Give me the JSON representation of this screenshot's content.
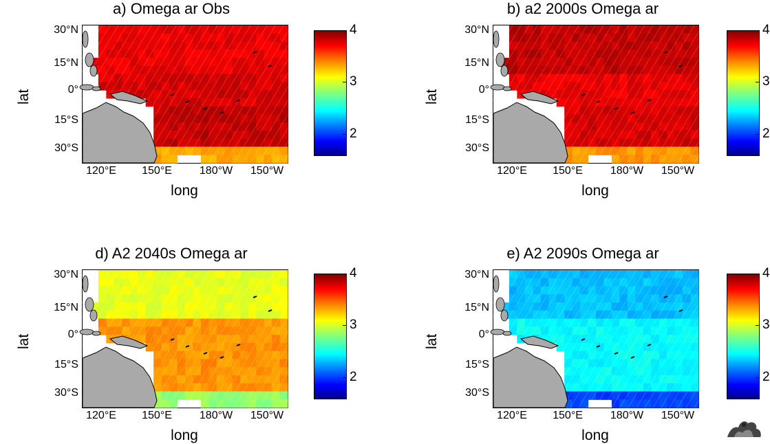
{
  "chart_data": [
    {
      "type": "heatmap",
      "title": "a) Omega ar Obs",
      "xlabel": "long",
      "ylabel": "lat",
      "x_ticks": [
        "120°E",
        "150°E",
        "180°W",
        "150°W"
      ],
      "y_ticks": [
        "30°N",
        "15°N",
        "0°",
        "15°S",
        "30°S"
      ],
      "colorbar": {
        "range": [
          1.6,
          4.0
        ],
        "ticks": [
          "4",
          "3",
          "2"
        ]
      },
      "typical_values": {
        "north": 3.75,
        "equator": 3.8,
        "south_central": 3.85,
        "far_south": 3.3
      }
    },
    {
      "type": "heatmap",
      "title": "b) a2 2000s Omega ar",
      "xlabel": "long",
      "ylabel": "lat",
      "x_ticks": [
        "120°E",
        "150°E",
        "180°W",
        "150°W"
      ],
      "y_ticks": [
        "30°N",
        "15°N",
        "0°",
        "15°S",
        "30°S"
      ],
      "colorbar": {
        "range": [
          1.6,
          4.0
        ],
        "ticks": [
          "4",
          "3",
          "2"
        ]
      },
      "typical_values": {
        "north": 3.85,
        "equator": 3.75,
        "south_central": 3.8,
        "far_south": 3.35
      }
    },
    {
      "type": "heatmap",
      "title": "d) A2 2040s Omega ar",
      "xlabel": "long",
      "ylabel": "lat",
      "x_ticks": [
        "120°E",
        "150°E",
        "180°W",
        "150°W"
      ],
      "y_ticks": [
        "30°N",
        "15°N",
        "0°",
        "15°S",
        "30°S"
      ],
      "colorbar": {
        "range": [
          1.6,
          4.0
        ],
        "ticks": [
          "4",
          "3",
          "2"
        ]
      },
      "typical_values": {
        "north": 3.05,
        "equator": 3.35,
        "south_central": 3.35,
        "far_south": 2.85
      }
    },
    {
      "type": "heatmap",
      "title": "e) A2 2090s Omega ar",
      "xlabel": "long",
      "ylabel": "lat",
      "x_ticks": [
        "120°E",
        "150°E",
        "180°W",
        "150°W"
      ],
      "y_ticks": [
        "30°N",
        "15°N",
        "0°",
        "15°S",
        "30°S"
      ],
      "colorbar": {
        "range": [
          1.6,
          4.0
        ],
        "ticks": [
          "4",
          "3",
          "2"
        ]
      },
      "typical_values": {
        "north": 2.35,
        "equator": 2.5,
        "south_central": 2.5,
        "far_south": 2.05
      }
    }
  ]
}
